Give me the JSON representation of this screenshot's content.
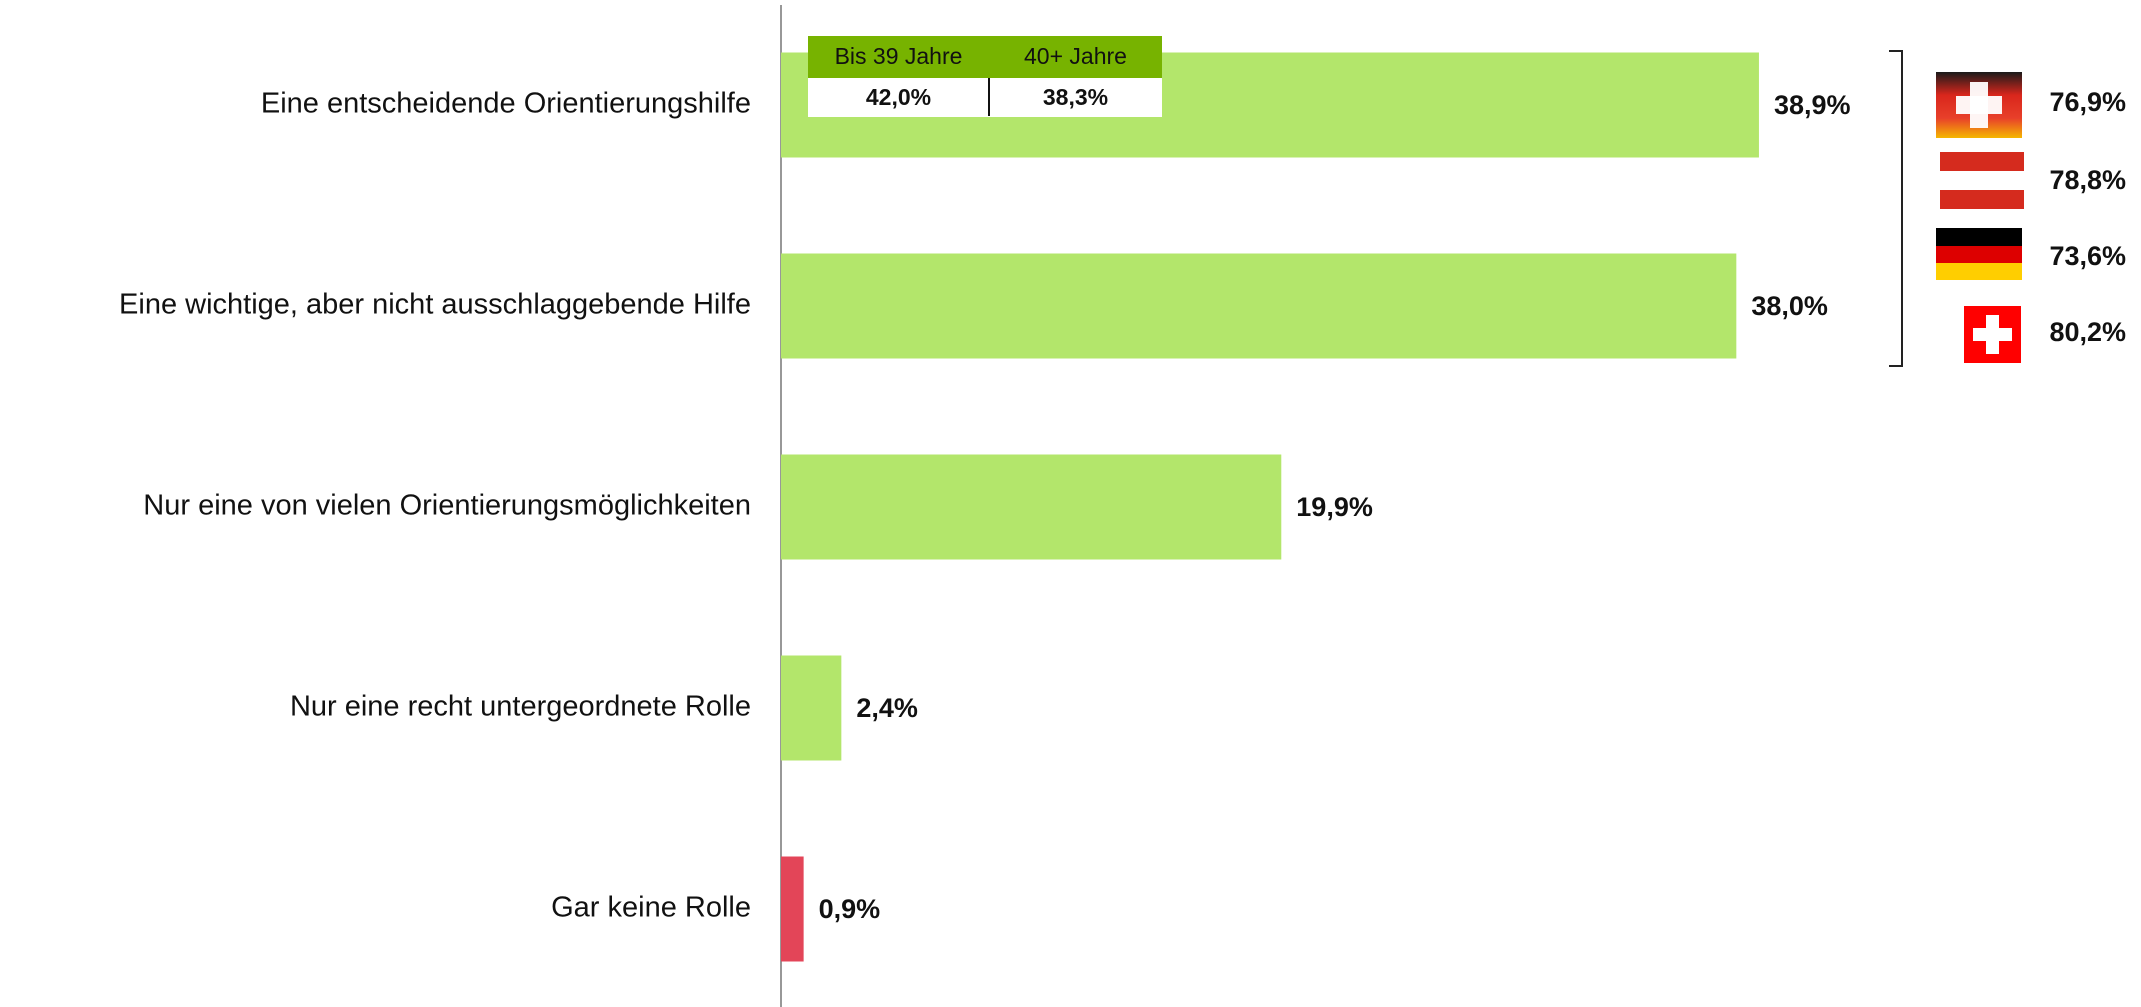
{
  "chart_data": {
    "type": "bar",
    "orientation": "horizontal",
    "categories": [
      "Eine entscheidende Orientierungshilfe",
      "Eine wichtige, aber nicht ausschlaggebende Hilfe",
      "Nur eine von vielen Orientierungsmöglichkeiten",
      "Nur eine recht untergeordnete Rolle",
      "Gar keine Rolle"
    ],
    "values": [
      38.9,
      38.0,
      19.9,
      2.4,
      0.9
    ],
    "value_labels": [
      "38,9%",
      "38,0%",
      "19,9%",
      "2,4%",
      "0,9%"
    ],
    "colors": [
      "#b3e66b",
      "#b3e66b",
      "#b3e66b",
      "#b3e66b",
      "#e34558"
    ],
    "xlim": [
      0,
      50
    ],
    "age_breakdown": {
      "columns": [
        "Bis 39 Jahre",
        "40+ Jahre"
      ],
      "values": [
        42.0,
        38.3
      ],
      "value_labels": [
        "42,0%",
        "38,3%"
      ],
      "header_color": "#77b300"
    },
    "country_totals": {
      "values": [
        76.9,
        78.8,
        73.6,
        80.2
      ],
      "value_labels": [
        "76,9%",
        "78,8%",
        "73,6%",
        "80,2%"
      ]
    }
  }
}
